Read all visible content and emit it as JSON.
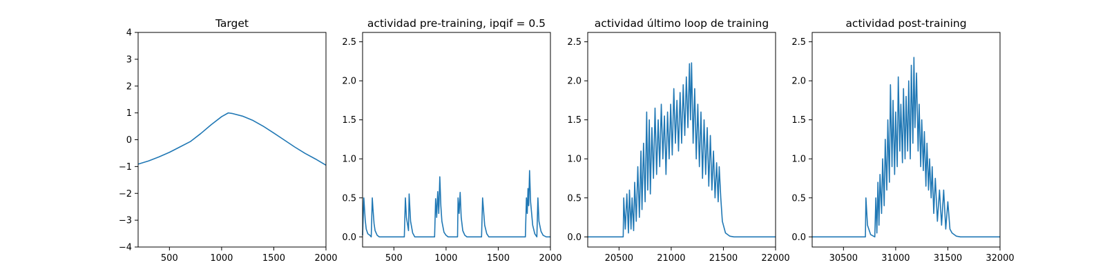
{
  "chart_data": [
    {
      "type": "line",
      "title": "Target",
      "xlim": [
        200,
        2000
      ],
      "ylim": [
        -4,
        4
      ],
      "xticks": [
        500,
        1000,
        1500,
        2000
      ],
      "yticks": [
        -4,
        -3,
        -2,
        -1,
        0,
        1,
        2,
        3,
        4
      ],
      "series": [
        {
          "color": "#1f77b4",
          "x": [
            200,
            300,
            400,
            500,
            600,
            700,
            800,
            900,
            1000,
            1064,
            1100,
            1200,
            1300,
            1400,
            1500,
            1600,
            1700,
            1800,
            1900,
            2000
          ],
          "y": [
            -0.91,
            -0.79,
            -0.64,
            -0.47,
            -0.27,
            -0.07,
            0.23,
            0.56,
            0.86,
            1.0,
            0.98,
            0.88,
            0.72,
            0.5,
            0.25,
            -0.01,
            -0.27,
            -0.51,
            -0.72,
            -0.95
          ]
        }
      ]
    },
    {
      "type": "line",
      "title": "actividad pre-training, ipqif = 0.5",
      "xlim": [
        200,
        2000
      ],
      "ylim": [
        -0.13,
        2.62
      ],
      "xticks": [
        500,
        1000,
        1500,
        2000
      ],
      "yticks": [
        0.0,
        0.5,
        1.0,
        1.5,
        2.0,
        2.5
      ],
      "series": [
        {
          "color": "#1f77b4",
          "x": [
            200,
            212,
            225,
            235,
            250,
            270,
            283,
            293,
            300,
            310,
            320,
            340,
            360,
            380,
            600,
            610,
            620,
            640,
            646,
            660,
            680,
            700,
            890,
            900,
            910,
            920,
            930,
            940,
            950,
            960,
            980,
            1000,
            1020,
            1110,
            1115,
            1125,
            1135,
            1145,
            1160,
            1180,
            1200,
            1340,
            1350,
            1370,
            1390,
            1410,
            1760,
            1770,
            1778,
            1785,
            1792,
            1800,
            1810,
            1830,
            1850,
            1870,
            1880,
            1890,
            1910,
            1930,
            1960,
            2000
          ],
          "y": [
            0.02,
            0.5,
            0.22,
            0.1,
            0.04,
            0.02,
            0.0,
            0.5,
            0.35,
            0.17,
            0.08,
            0.02,
            0.0,
            0.0,
            0.0,
            0.5,
            0.25,
            0.08,
            0.55,
            0.2,
            0.05,
            0.0,
            0.0,
            0.49,
            0.25,
            0.58,
            0.3,
            0.77,
            0.4,
            0.2,
            0.06,
            0.02,
            0.0,
            0.0,
            0.5,
            0.3,
            0.57,
            0.25,
            0.08,
            0.02,
            0.0,
            0.0,
            0.5,
            0.15,
            0.04,
            0.0,
            0.0,
            0.5,
            0.3,
            0.62,
            0.4,
            0.85,
            0.45,
            0.15,
            0.04,
            0.0,
            0.5,
            0.2,
            0.07,
            0.02,
            0.0,
            0.0
          ]
        }
      ]
    },
    {
      "type": "line",
      "title": "actividad último loop de training",
      "xlim": [
        20200,
        22000
      ],
      "ylim": [
        -0.13,
        2.62
      ],
      "xticks": [
        20500,
        21000,
        21500,
        22000
      ],
      "yticks": [
        0.0,
        0.5,
        1.0,
        1.5,
        2.0,
        2.5
      ],
      "series": [
        {
          "color": "#1f77b4",
          "x": [
            20200,
            20540,
            20545,
            20560,
            20575,
            20590,
            20600,
            20615,
            20625,
            20640,
            20650,
            20665,
            20680,
            20695,
            20710,
            20720,
            20735,
            20750,
            20765,
            20775,
            20790,
            20800,
            20815,
            20830,
            20845,
            20860,
            20875,
            20890,
            20905,
            20920,
            20935,
            20950,
            20965,
            20980,
            20995,
            21010,
            21025,
            21040,
            21055,
            21070,
            21085,
            21100,
            21115,
            21130,
            21145,
            21160,
            21175,
            21185,
            21195,
            21210,
            21225,
            21240,
            21255,
            21270,
            21285,
            21300,
            21315,
            21330,
            21345,
            21360,
            21375,
            21390,
            21405,
            21420,
            21435,
            21450,
            21460,
            21475,
            21490,
            21520,
            21560,
            21600,
            22000
          ],
          "y": [
            0.0,
            0.0,
            0.5,
            0.1,
            0.55,
            0.05,
            0.6,
            0.1,
            0.5,
            0.08,
            0.7,
            0.2,
            0.9,
            0.25,
            1.1,
            0.35,
            1.2,
            0.45,
            1.6,
            0.6,
            1.5,
            0.55,
            1.4,
            0.75,
            1.65,
            0.8,
            1.5,
            0.9,
            1.7,
            1.0,
            1.55,
            0.8,
            1.6,
            1.0,
            1.7,
            1.05,
            1.9,
            1.2,
            1.75,
            1.1,
            1.85,
            1.2,
            1.95,
            1.3,
            2.05,
            1.4,
            2.22,
            1.5,
            2.23,
            1.2,
            1.9,
            1.0,
            1.7,
            0.9,
            1.6,
            0.75,
            1.5,
            0.8,
            1.4,
            0.65,
            1.3,
            0.6,
            1.1,
            0.5,
            0.95,
            0.45,
            0.9,
            0.5,
            0.2,
            0.05,
            0.01,
            0.0,
            0.0
          ]
        }
      ]
    },
    {
      "type": "line",
      "title": "actividad post-training",
      "xlim": [
        30200,
        32000
      ],
      "ylim": [
        -0.13,
        2.62
      ],
      "xticks": [
        30500,
        31000,
        31500,
        32000
      ],
      "yticks": [
        0.0,
        0.5,
        1.0,
        1.5,
        2.0,
        2.5
      ],
      "series": [
        {
          "color": "#1f77b4",
          "x": [
            30200,
            30710,
            30715,
            30730,
            30760,
            30800,
            30810,
            30820,
            30830,
            30840,
            30850,
            30865,
            30875,
            30890,
            30900,
            30915,
            30925,
            30940,
            30950,
            30965,
            30975,
            30990,
            31000,
            31015,
            31025,
            31040,
            31050,
            31065,
            31075,
            31090,
            31100,
            31115,
            31125,
            31140,
            31150,
            31165,
            31175,
            31185,
            31200,
            31215,
            31225,
            31240,
            31250,
            31265,
            31275,
            31290,
            31300,
            31315,
            31325,
            31340,
            31350,
            31365,
            31380,
            31400,
            31420,
            31440,
            31460,
            31480,
            31500,
            31520,
            31540,
            31580,
            31620,
            32000
          ],
          "y": [
            0.0,
            0.0,
            0.5,
            0.15,
            0.03,
            0.0,
            0.5,
            0.05,
            0.7,
            0.15,
            0.8,
            0.3,
            1.0,
            0.4,
            1.25,
            0.6,
            1.5,
            0.7,
            1.95,
            0.9,
            1.75,
            0.8,
            1.6,
            0.9,
            2.05,
            1.1,
            1.7,
            0.95,
            1.9,
            1.0,
            1.8,
            1.1,
            2.0,
            1.0,
            2.2,
            1.2,
            2.3,
            1.4,
            2.1,
            1.1,
            1.7,
            0.9,
            1.5,
            0.85,
            1.35,
            0.65,
            1.2,
            0.6,
            1.0,
            0.5,
            0.9,
            0.3,
            0.75,
            0.2,
            0.6,
            0.15,
            0.6,
            0.1,
            0.45,
            0.1,
            0.05,
            0.01,
            0.0,
            0.0
          ]
        }
      ]
    }
  ]
}
